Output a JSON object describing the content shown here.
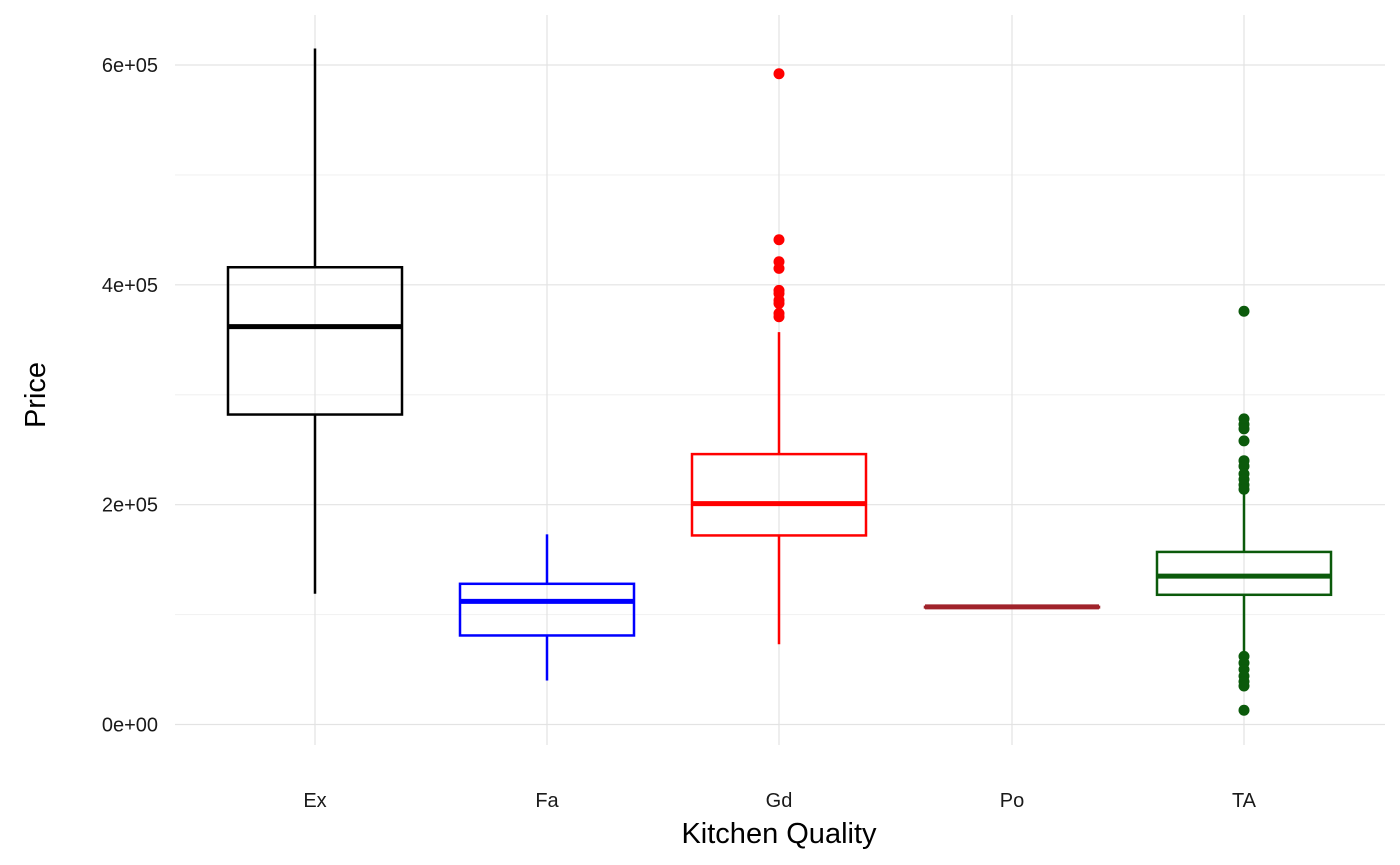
{
  "chart_data": {
    "type": "boxplot",
    "title": "",
    "xlabel": "Kitchen Quality",
    "ylabel": "Price",
    "ylim": [
      -30000,
      640000
    ],
    "grid": true,
    "legend": "none",
    "y_ticks": [
      {
        "value": 0,
        "label": "0e+00"
      },
      {
        "value": 200000,
        "label": "2e+05"
      },
      {
        "value": 400000,
        "label": "4e+05"
      },
      {
        "value": 600000,
        "label": "6e+05"
      }
    ],
    "y_minor_ticks": [
      100000,
      300000,
      500000
    ],
    "categories": [
      "Ex",
      "Fa",
      "Gd",
      "Po",
      "TA"
    ],
    "series": [
      {
        "category": "Ex",
        "color": "#000000",
        "whisker_low": 119000,
        "q1": 282000,
        "median": 362000,
        "q3": 416000,
        "whisker_high": 615000,
        "outliers": []
      },
      {
        "category": "Fa",
        "color": "#0000ff",
        "whisker_low": 40000,
        "q1": 81000,
        "median": 112000,
        "q3": 128000,
        "whisker_high": 173000,
        "outliers": []
      },
      {
        "category": "Gd",
        "color": "#ff0000",
        "whisker_low": 73000,
        "q1": 172000,
        "median": 201000,
        "q3": 246000,
        "whisker_high": 357000,
        "outliers": [
          592000,
          441000,
          421000,
          415000,
          395000,
          392000,
          386000,
          383000,
          374000,
          371000
        ]
      },
      {
        "category": "Po",
        "color": "#a0232b",
        "whisker_low": 107000,
        "q1": 107000,
        "median": 107000,
        "q3": 107000,
        "whisker_high": 107000,
        "outliers": []
      },
      {
        "category": "TA",
        "color": "#0b5a0b",
        "whisker_low": 64000,
        "q1": 118000,
        "median": 135000,
        "q3": 157000,
        "whisker_high": 212000,
        "outliers": [
          376000,
          278000,
          273000,
          269000,
          258000,
          240000,
          235000,
          228000,
          223000,
          218000,
          214000,
          62000,
          56000,
          50000,
          44000,
          39000,
          35000,
          13000
        ]
      }
    ]
  }
}
